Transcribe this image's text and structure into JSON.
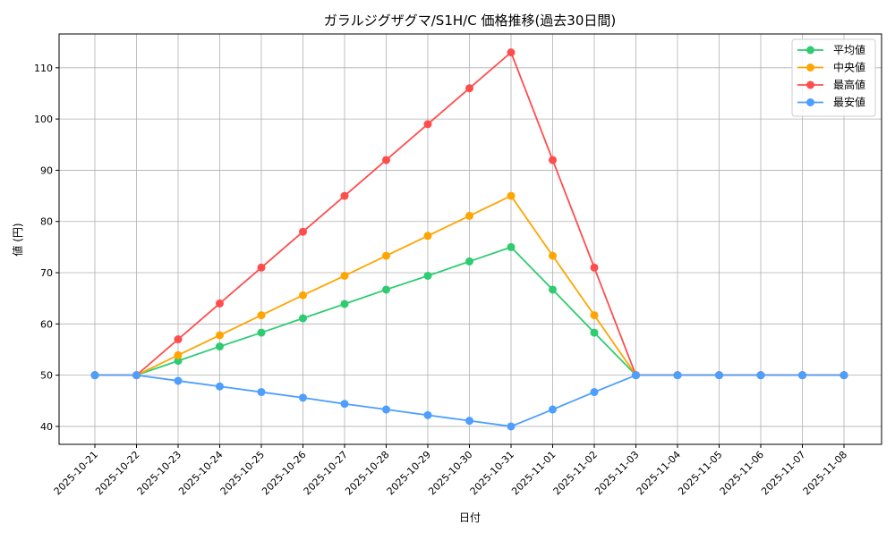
{
  "chart_data": {
    "type": "line",
    "title": "ガラルジグザグマ/S1H/C 価格推移(過去30日間)",
    "xlabel": "日付",
    "ylabel": "値 (円)",
    "ylim": [
      36.5,
      116.6
    ],
    "yticks": [
      40,
      50,
      60,
      70,
      80,
      90,
      100,
      110
    ],
    "grid": true,
    "legend_position": "top-right",
    "categories": [
      "2025-10-21",
      "2025-10-22",
      "2025-10-23",
      "2025-10-24",
      "2025-10-25",
      "2025-10-26",
      "2025-10-27",
      "2025-10-28",
      "2025-10-29",
      "2025-10-30",
      "2025-10-31",
      "2025-11-01",
      "2025-11-02",
      "2025-11-03",
      "2025-11-04",
      "2025-11-05",
      "2025-11-06",
      "2025-11-07",
      "2025-11-08"
    ],
    "series": [
      {
        "name": "平均値",
        "color": "#2ecc71",
        "values": [
          50,
          50,
          52.8,
          55.6,
          58.3,
          61.1,
          63.9,
          66.7,
          69.4,
          72.2,
          75,
          66.7,
          58.3,
          50,
          50,
          50,
          50,
          50,
          50
        ]
      },
      {
        "name": "中央値",
        "color": "#ffa500",
        "values": [
          50,
          50,
          53.9,
          57.8,
          61.7,
          65.6,
          69.4,
          73.3,
          77.2,
          81.1,
          85,
          73.3,
          61.7,
          50,
          50,
          50,
          50,
          50,
          50
        ]
      },
      {
        "name": "最高値",
        "color": "#ff4d4d",
        "values": [
          50,
          50,
          57,
          64,
          71,
          78,
          85,
          92,
          99,
          106,
          113,
          92,
          71,
          50,
          50,
          50,
          50,
          50,
          50
        ]
      },
      {
        "name": "最安値",
        "color": "#4d9eff",
        "values": [
          50,
          50,
          48.9,
          47.8,
          46.7,
          45.6,
          44.4,
          43.3,
          42.2,
          41.1,
          40,
          43.3,
          46.7,
          50,
          50,
          50,
          50,
          50,
          50
        ]
      }
    ]
  }
}
